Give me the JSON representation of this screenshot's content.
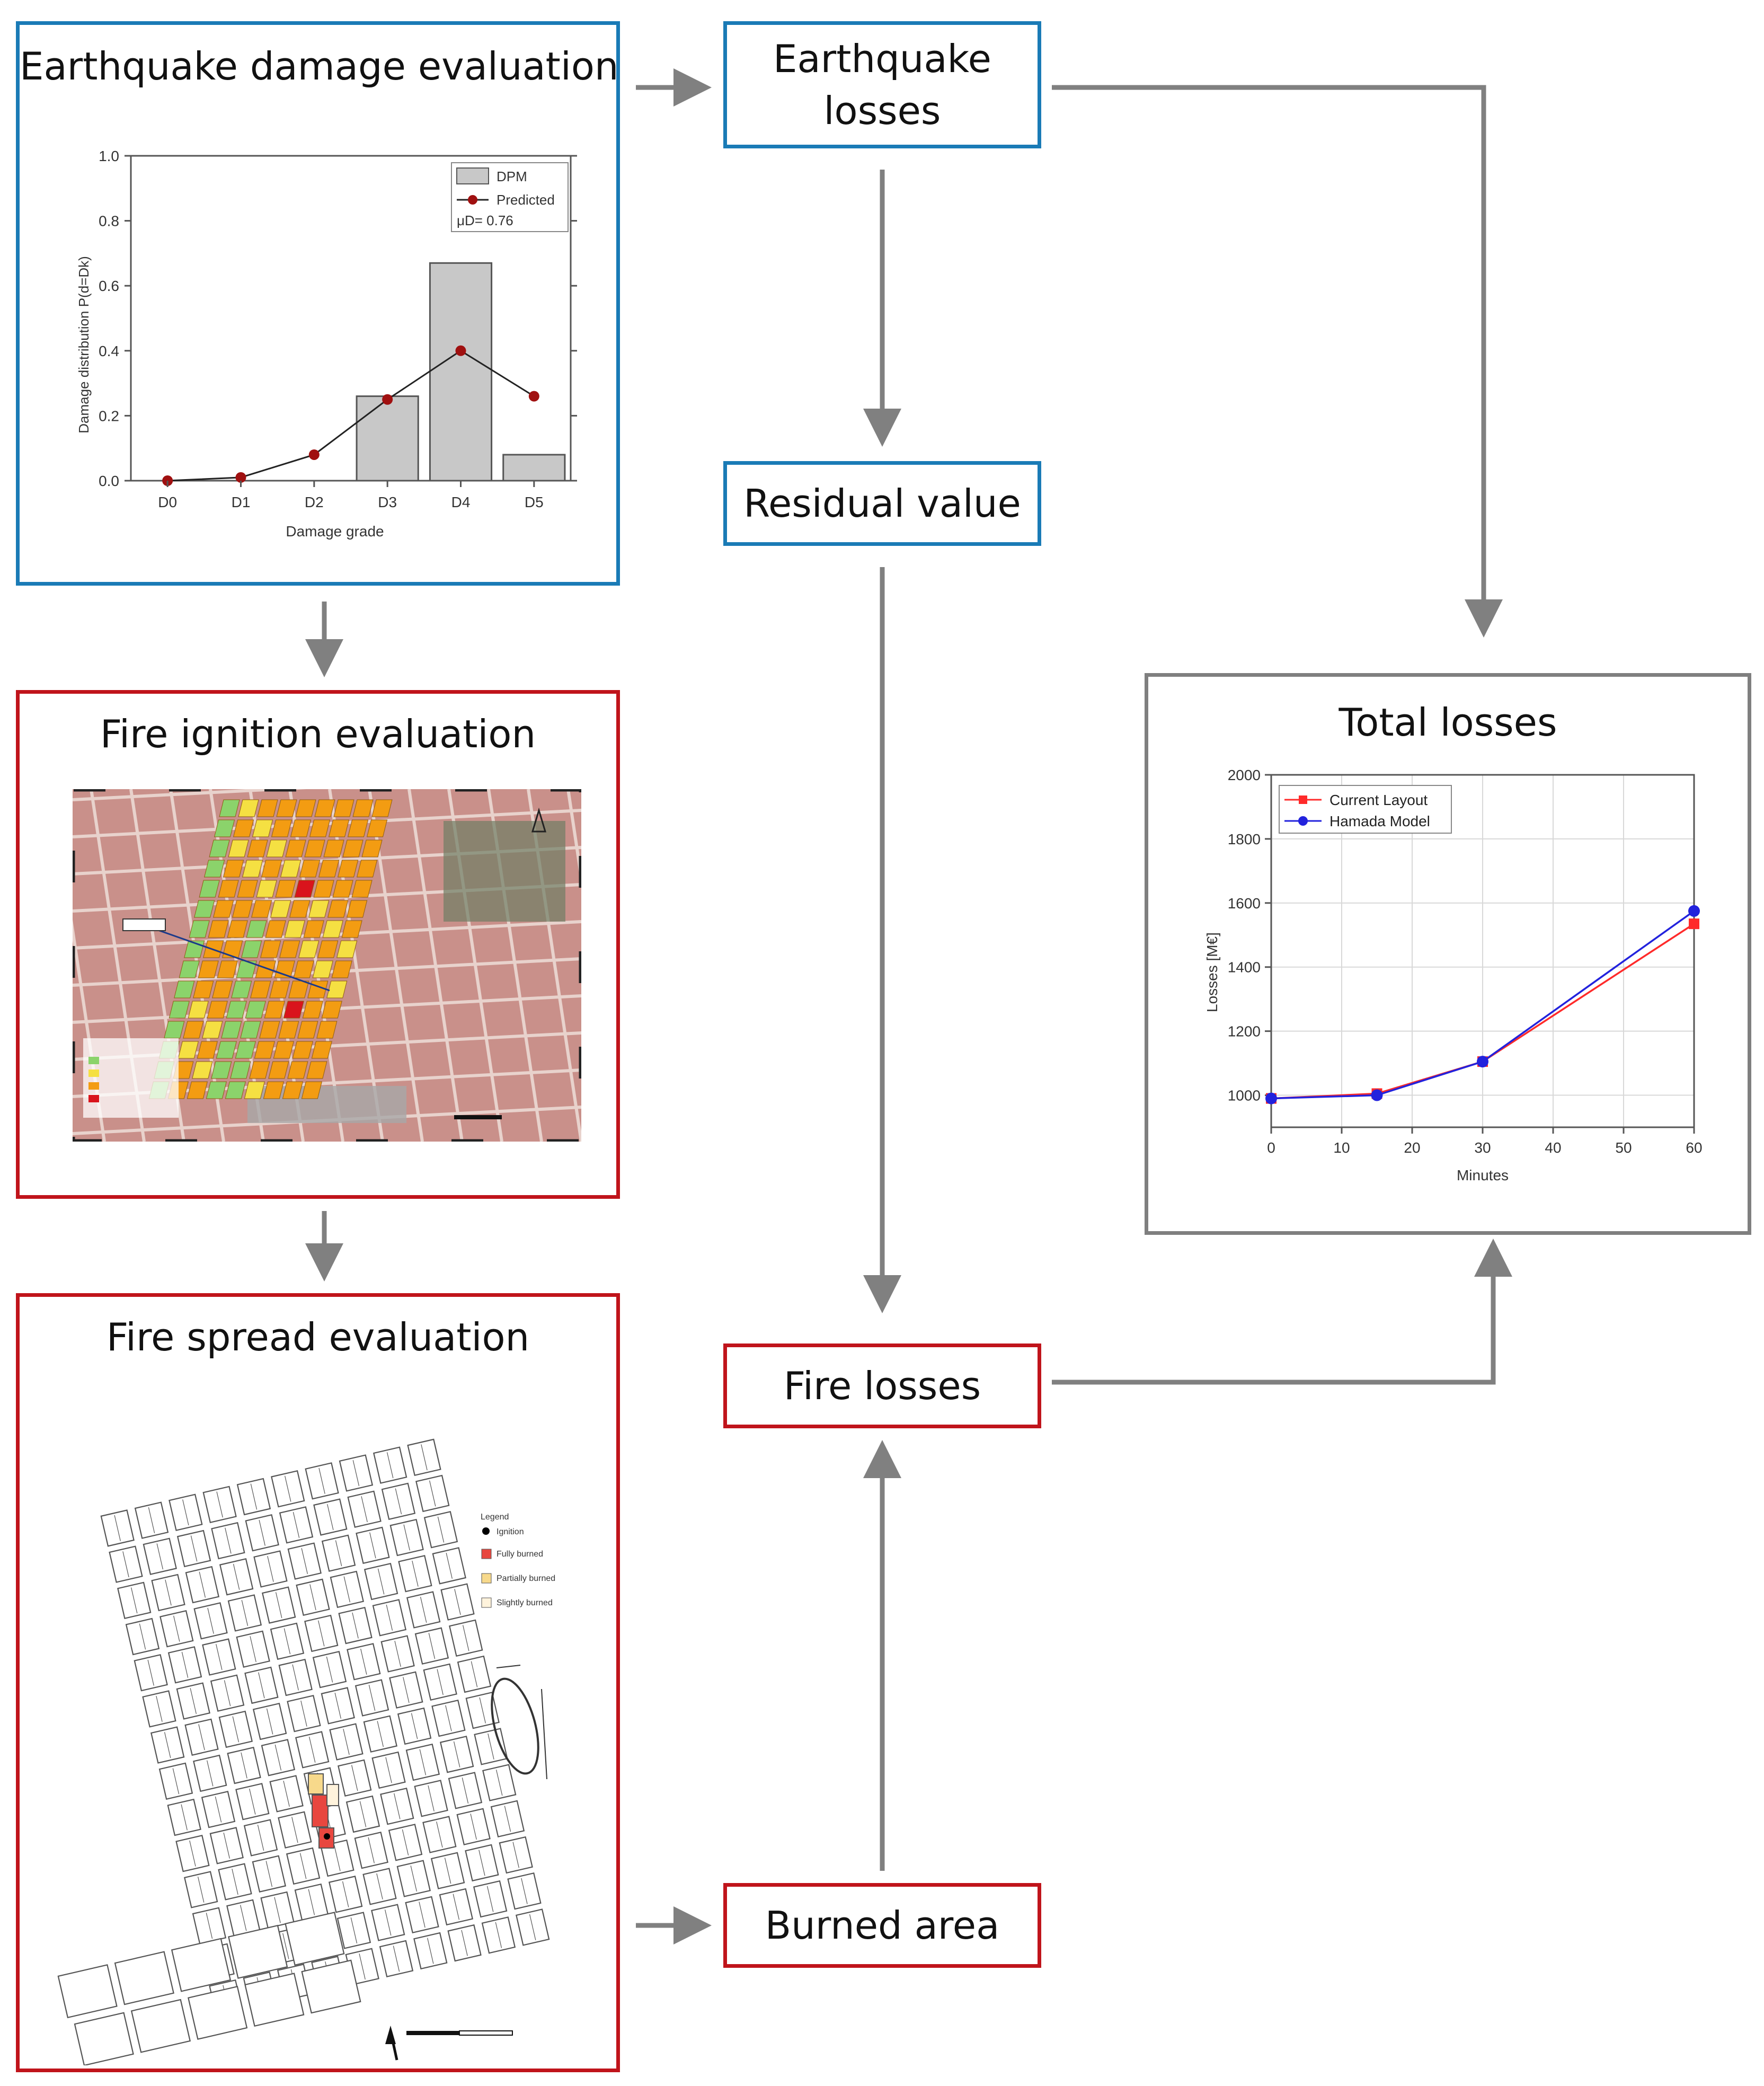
{
  "colors": {
    "earthquake": "#1a7bb6",
    "fire": "#c0141b",
    "total": "#7f7f7f",
    "arrow": "#808080"
  },
  "boxes": {
    "eq_damage": "Earthquake damage evaluation",
    "fire_ignition": "Fire ignition evaluation",
    "fire_spread": "Fire spread evaluation",
    "eq_losses_line1": "Earthquake",
    "eq_losses_line2": "losses",
    "residual_value": "Residual value",
    "fire_losses": "Fire losses",
    "burned_area": "Burned area",
    "total_losses": "Total losses"
  },
  "damage_chart_legend": {
    "dpm": "DPM",
    "predicted": "Predicted",
    "mu": "μD= 0.76"
  },
  "spread_legend": {
    "title": "Legend",
    "ignition": "Ignition",
    "fully": "Fully burned",
    "partially": "Partially burned",
    "slightly": "Slightly burned"
  },
  "chart_data": [
    {
      "type": "bar",
      "xlabel": "Damage grade",
      "ylabel": "Damage distribution P(d=Dk)",
      "categories": [
        "D0",
        "D1",
        "D2",
        "D3",
        "D4",
        "D5"
      ],
      "ylim": [
        0,
        1.0
      ],
      "yticks": [
        "0.0",
        "0.2",
        "0.4",
        "0.6",
        "0.8",
        "1.0"
      ],
      "series": [
        {
          "name": "DPM",
          "kind": "bar",
          "values": [
            0,
            0,
            0,
            0.26,
            0.67,
            0.08
          ],
          "color": "#c8c8c8"
        },
        {
          "name": "Predicted",
          "kind": "line",
          "values": [
            0.0,
            0.01,
            0.08,
            0.25,
            0.4,
            0.26
          ],
          "color": "#a01010"
        }
      ],
      "legend": "top-right"
    },
    {
      "type": "line",
      "xlabel": "Minutes",
      "ylabel": "Losses [M€]",
      "x": [
        0,
        15,
        30,
        60
      ],
      "xlim": [
        0,
        60
      ],
      "ylim": [
        900,
        2000
      ],
      "xticks": [
        "0",
        "10",
        "20",
        "30",
        "40",
        "50",
        "60"
      ],
      "yticks": [
        "1000",
        "1200",
        "1400",
        "1600",
        "1800",
        "2000"
      ],
      "series": [
        {
          "name": "Current Layout",
          "values": [
            990,
            1005,
            1105,
            1535
          ],
          "color": "#ff2a2a"
        },
        {
          "name": "Hamada Model",
          "values": [
            990,
            1000,
            1105,
            1575
          ],
          "color": "#2222dd"
        }
      ],
      "grid": true,
      "legend": "top-left"
    }
  ]
}
